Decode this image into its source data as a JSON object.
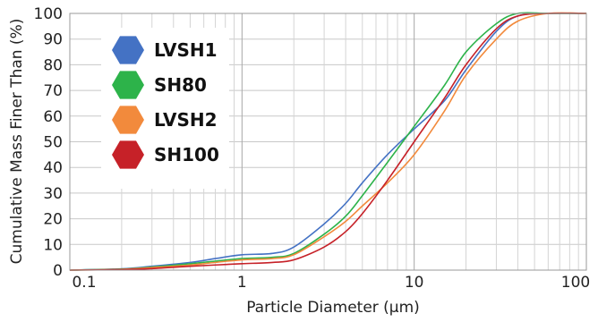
{
  "chart_data": {
    "type": "line",
    "xlabel": "Particle Diameter (µm)",
    "ylabel": "Cumulative Mass Finer Than (%)",
    "xscale": "log",
    "xlim": [
      0.1,
      100
    ],
    "ylim": [
      0,
      100
    ],
    "grid": true,
    "legend_position": "top-left",
    "x_ticks": [
      "0.1",
      "1",
      "10",
      "100"
    ],
    "y_ticks": [
      "0",
      "10",
      "20",
      "30",
      "40",
      "50",
      "60",
      "70",
      "80",
      "90",
      "100"
    ],
    "series": [
      {
        "name": "LVSH1",
        "color": "#4472C4",
        "x": [
          0.1,
          0.2,
          0.3,
          0.5,
          0.7,
          1,
          1.5,
          2,
          3,
          4,
          5,
          7,
          10,
          15,
          20,
          30,
          40,
          60,
          100
        ],
        "y": [
          0,
          0.5,
          1.5,
          3,
          4.5,
          6,
          6.5,
          9,
          18,
          26,
          34,
          45,
          55,
          66,
          78,
          93,
          99,
          100,
          100
        ]
      },
      {
        "name": "SH80",
        "color": "#2DB34A",
        "x": [
          0.1,
          0.2,
          0.3,
          0.5,
          0.7,
          1,
          1.5,
          2,
          3,
          4,
          5,
          7,
          10,
          15,
          20,
          30,
          40,
          60,
          100
        ],
        "y": [
          0,
          0.4,
          1.2,
          2.5,
          3.5,
          4.5,
          5,
          6.5,
          14,
          21,
          29,
          42,
          56,
          72,
          85,
          96,
          100,
          100,
          100
        ]
      },
      {
        "name": "LVSH2",
        "color": "#F28A3C",
        "x": [
          0.1,
          0.2,
          0.3,
          0.5,
          0.7,
          1,
          1.5,
          2,
          3,
          4,
          5,
          7,
          10,
          15,
          20,
          30,
          40,
          60,
          100
        ],
        "y": [
          0,
          0.3,
          1,
          2,
          3,
          4,
          4.5,
          6,
          13,
          19,
          25,
          34,
          45,
          62,
          76,
          90,
          97,
          100,
          100
        ]
      },
      {
        "name": "SH100",
        "color": "#C62128",
        "x": [
          0.1,
          0.2,
          0.3,
          0.5,
          0.7,
          1,
          1.5,
          2,
          3,
          4,
          5,
          7,
          10,
          15,
          20,
          30,
          40,
          60,
          100
        ],
        "y": [
          0,
          0.2,
          0.6,
          1.5,
          2,
          2.5,
          3,
          4,
          9,
          15,
          22,
          35,
          50,
          67,
          80,
          94,
          99,
          100,
          100
        ]
      }
    ]
  }
}
